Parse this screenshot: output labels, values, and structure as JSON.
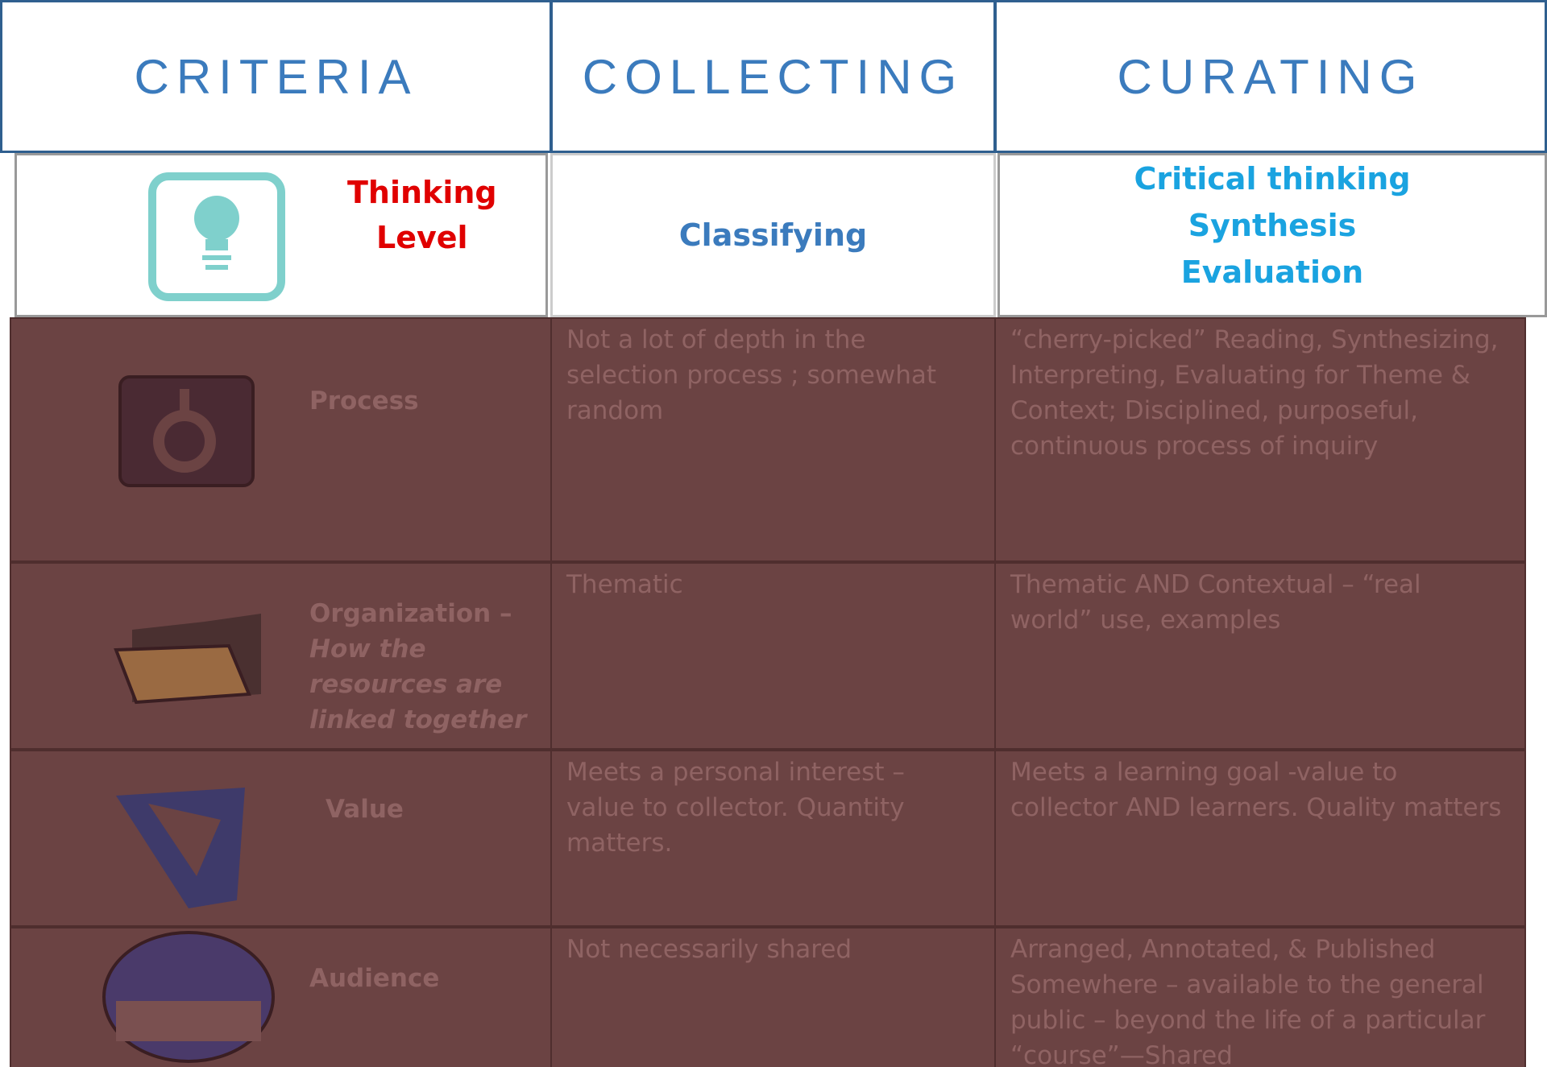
{
  "header": {
    "columns": [
      "CRITERIA",
      "COLLECTING",
      "CURATING"
    ]
  },
  "thinking": {
    "label": [
      "Thinking",
      "Level"
    ],
    "collecting": "Classifying",
    "curating": [
      "Critical thinking",
      "Synthesis",
      "Evaluation"
    ]
  },
  "rows": [
    {
      "label": "Process",
      "label_note": null,
      "collecting": "Not a lot of depth in the selection process ; somewhat random",
      "curating": "“cherry-picked” Reading, Synthesizing, Interpreting, Evaluating for Theme & Context; Disciplined, purposeful, continuous process of inquiry"
    },
    {
      "label": "Organization –",
      "label_note": "How the resources are linked together",
      "collecting": "Thematic",
      "curating": "Thematic AND Contextual – “real world” use, examples"
    },
    {
      "label": "Value",
      "label_note": null,
      "collecting": "Meets a personal interest – value to collector. Quantity matters.",
      "curating": "Meets a learning goal -value to collector AND learners. Quality matters"
    },
    {
      "label": "Audience",
      "label_note": null,
      "collecting": "Not necessarily shared",
      "curating": "Arranged, Annotated, & Published Somewhere – available to the general public – beyond the life of a particular “course”—Shared"
    }
  ]
}
